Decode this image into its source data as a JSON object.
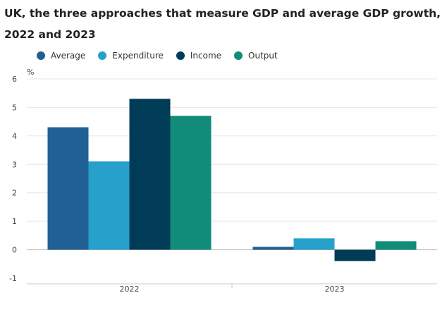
{
  "chart_data": {
    "type": "bar",
    "title": "UK, the three approaches that measure GDP and average GDP growth,",
    "subtitle": "2022 and 2023",
    "ylabel": "%",
    "xlabel": "",
    "ylim": [
      -1,
      6
    ],
    "yticks": [
      6,
      5,
      4,
      3,
      2,
      1,
      0,
      -1
    ],
    "categories": [
      "2022",
      "2023"
    ],
    "legend_position": "top-left",
    "grid": true,
    "series": [
      {
        "name": "Average",
        "color": "#206095",
        "values": [
          4.3,
          0.1
        ]
      },
      {
        "name": "Expenditure",
        "color": "#27a0cc",
        "values": [
          3.1,
          0.4
        ]
      },
      {
        "name": "Income",
        "color": "#003c57",
        "values": [
          5.3,
          -0.4
        ]
      },
      {
        "name": "Output",
        "color": "#118c7b",
        "values": [
          4.7,
          0.3
        ]
      }
    ]
  }
}
